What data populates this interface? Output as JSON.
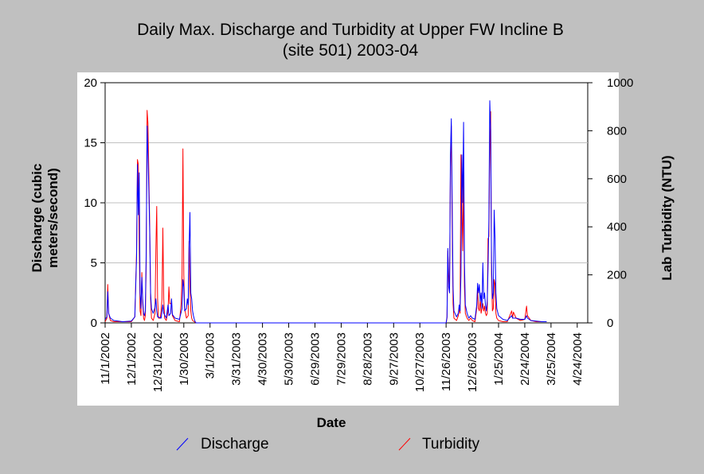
{
  "chart_data": {
    "type": "line",
    "title_line1": "Daily Max. Discharge and Turbidity at Upper FW Incline B",
    "title_line2": "(site 501) 2003-04",
    "xlabel": "Date",
    "ylabel_left_line1": "Discharge (cubic",
    "ylabel_left_line2": "meters/second)",
    "ylabel_right": "Lab Turbidity (NTU)",
    "x_tick_labels": [
      "11/1/2002",
      "12/1/2002",
      "12/31/2002",
      "1/30/2003",
      "3/1/2003",
      "3/31/2003",
      "4/30/2003",
      "5/30/2003",
      "6/29/2003",
      "7/29/2003",
      "8/28/2003",
      "9/27/2003",
      "10/27/2003",
      "11/26/2003",
      "12/26/2003",
      "1/25/2004",
      "2/24/2004",
      "3/25/2004",
      "4/24/2004"
    ],
    "x_range_days": [
      0,
      552
    ],
    "y_left": {
      "ticks": [
        "0",
        "5",
        "10",
        "15",
        "20"
      ],
      "range": [
        0,
        20
      ]
    },
    "y_right": {
      "ticks": [
        "0",
        "200",
        "400",
        "600",
        "800",
        "1000"
      ],
      "range": [
        0,
        1000
      ]
    },
    "grid": true,
    "legend_position": "bottom",
    "series": [
      {
        "name": "Discharge",
        "axis": "left",
        "color": "#0000ff",
        "points": [
          [
            0,
            0.3
          ],
          [
            2,
            0.5
          ],
          [
            3,
            2.6
          ],
          [
            4,
            0.8
          ],
          [
            6,
            0.4
          ],
          [
            10,
            0.2
          ],
          [
            20,
            0.1
          ],
          [
            30,
            0.15
          ],
          [
            34,
            0.5
          ],
          [
            36,
            5.5
          ],
          [
            37,
            13.2
          ],
          [
            38,
            9.0
          ],
          [
            39,
            12.5
          ],
          [
            40,
            2.5
          ],
          [
            41,
            1.2
          ],
          [
            42,
            3.8
          ],
          [
            43,
            2.0
          ],
          [
            44,
            0.8
          ],
          [
            45,
            0.6
          ],
          [
            46,
            1.0
          ],
          [
            47,
            6.0
          ],
          [
            48,
            16.4
          ],
          [
            49,
            14.0
          ],
          [
            50,
            11.0
          ],
          [
            51,
            7.5
          ],
          [
            52,
            2.5
          ],
          [
            53,
            1.2
          ],
          [
            55,
            0.8
          ],
          [
            57,
            1.3
          ],
          [
            58,
            2.0
          ],
          [
            59,
            1.0
          ],
          [
            60,
            0.5
          ],
          [
            64,
            0.4
          ],
          [
            66,
            1.5
          ],
          [
            67,
            0.8
          ],
          [
            70,
            0.4
          ],
          [
            72,
            1.5
          ],
          [
            73,
            0.6
          ],
          [
            75,
            0.8
          ],
          [
            76,
            2.0
          ],
          [
            77,
            0.7
          ],
          [
            80,
            0.4
          ],
          [
            85,
            0.3
          ],
          [
            88,
            1.2
          ],
          [
            89,
            3.6
          ],
          [
            90,
            3.0
          ],
          [
            91,
            1.0
          ],
          [
            93,
            1.2
          ],
          [
            94,
            2.0
          ],
          [
            95,
            1.5
          ],
          [
            96,
            6.2
          ],
          [
            97,
            9.2
          ],
          [
            98,
            2.5
          ],
          [
            99,
            2.0
          ],
          [
            100,
            1.0
          ],
          [
            101,
            0.6
          ],
          [
            102,
            0.3
          ],
          [
            103,
            0.1
          ],
          [
            104,
            0
          ],
          [
            390,
            0
          ],
          [
            391,
            0.5
          ],
          [
            392,
            6.2
          ],
          [
            393,
            3.0
          ],
          [
            394,
            2.5
          ],
          [
            395,
            14.0
          ],
          [
            396,
            17.0
          ],
          [
            397,
            10.0
          ],
          [
            398,
            3.0
          ],
          [
            399,
            1.0
          ],
          [
            402,
            0.5
          ],
          [
            404,
            0.8
          ],
          [
            405,
            1.5
          ],
          [
            406,
            1.0
          ],
          [
            407,
            4.0
          ],
          [
            408,
            14.0
          ],
          [
            409,
            10.0
          ],
          [
            410,
            16.7
          ],
          [
            411,
            5.0
          ],
          [
            412,
            1.5
          ],
          [
            414,
            0.8
          ],
          [
            416,
            0.4
          ],
          [
            418,
            0.6
          ],
          [
            420,
            0.4
          ],
          [
            423,
            0.3
          ],
          [
            425,
            1.5
          ],
          [
            426,
            3.3
          ],
          [
            427,
            2.5
          ],
          [
            428,
            3.2
          ],
          [
            429,
            1.8
          ],
          [
            430,
            2.5
          ],
          [
            431,
            1.2
          ],
          [
            432,
            5.0
          ],
          [
            433,
            2.0
          ],
          [
            434,
            2.5
          ],
          [
            435,
            1.5
          ],
          [
            436,
            1.0
          ],
          [
            437,
            1.8
          ],
          [
            438,
            4.5
          ],
          [
            439,
            8.5
          ],
          [
            440,
            18.5
          ],
          [
            441,
            16.0
          ],
          [
            442,
            5.0
          ],
          [
            443,
            2.0
          ],
          [
            444,
            2.5
          ],
          [
            445,
            9.4
          ],
          [
            446,
            7.0
          ],
          [
            447,
            2.5
          ],
          [
            448,
            1.2
          ],
          [
            450,
            0.6
          ],
          [
            455,
            0.3
          ],
          [
            460,
            0.2
          ],
          [
            465,
            0.6
          ],
          [
            466,
            0.4
          ],
          [
            470,
            0.4
          ],
          [
            475,
            0.3
          ],
          [
            480,
            0.3
          ],
          [
            482,
            0.6
          ],
          [
            483,
            0.4
          ],
          [
            487,
            0.2
          ],
          [
            493,
            0.15
          ],
          [
            500,
            0.1
          ],
          [
            505,
            0.1
          ]
        ]
      },
      {
        "name": "Turbidity",
        "axis": "right",
        "color": "#ff0000",
        "points": [
          [
            0,
            5
          ],
          [
            2,
            20
          ],
          [
            3,
            160
          ],
          [
            4,
            40
          ],
          [
            6,
            10
          ],
          [
            10,
            5
          ],
          [
            20,
            5
          ],
          [
            30,
            5
          ],
          [
            34,
            25
          ],
          [
            36,
            300
          ],
          [
            37,
            680
          ],
          [
            38,
            660
          ],
          [
            39,
            350
          ],
          [
            40,
            50
          ],
          [
            41,
            30
          ],
          [
            42,
            210
          ],
          [
            43,
            80
          ],
          [
            44,
            20
          ],
          [
            45,
            10
          ],
          [
            46,
            30
          ],
          [
            47,
            250
          ],
          [
            48,
            885
          ],
          [
            49,
            830
          ],
          [
            50,
            620
          ],
          [
            51,
            400
          ],
          [
            52,
            100
          ],
          [
            53,
            20
          ],
          [
            55,
            10
          ],
          [
            57,
            40
          ],
          [
            58,
            300
          ],
          [
            59,
            485
          ],
          [
            60,
            100
          ],
          [
            61,
            20
          ],
          [
            63,
            20
          ],
          [
            64,
            50
          ],
          [
            65,
            100
          ],
          [
            66,
            395
          ],
          [
            67,
            100
          ],
          [
            68,
            20
          ],
          [
            70,
            10
          ],
          [
            72,
            50
          ],
          [
            73,
            150
          ],
          [
            74,
            80
          ],
          [
            76,
            80
          ],
          [
            77,
            30
          ],
          [
            80,
            10
          ],
          [
            85,
            5
          ],
          [
            87,
            80
          ],
          [
            88,
            200
          ],
          [
            89,
            725
          ],
          [
            90,
            200
          ],
          [
            91,
            60
          ],
          [
            93,
            20
          ],
          [
            95,
            30
          ],
          [
            96,
            340
          ],
          [
            97,
            150
          ],
          [
            98,
            50
          ],
          [
            99,
            20
          ],
          [
            100,
            10
          ],
          [
            102,
            5
          ],
          [
            104,
            0
          ],
          [
            390,
            0
          ],
          [
            391,
            20
          ],
          [
            392,
            300
          ],
          [
            393,
            200
          ],
          [
            394,
            150
          ],
          [
            395,
            650
          ],
          [
            396,
            820
          ],
          [
            397,
            400
          ],
          [
            398,
            80
          ],
          [
            399,
            20
          ],
          [
            402,
            10
          ],
          [
            404,
            30
          ],
          [
            405,
            60
          ],
          [
            406,
            40
          ],
          [
            407,
            700
          ],
          [
            408,
            500
          ],
          [
            409,
            300
          ],
          [
            410,
            630
          ],
          [
            411,
            150
          ],
          [
            412,
            40
          ],
          [
            414,
            20
          ],
          [
            416,
            10
          ],
          [
            418,
            20
          ],
          [
            420,
            10
          ],
          [
            423,
            5
          ],
          [
            425,
            60
          ],
          [
            426,
            140
          ],
          [
            427,
            60
          ],
          [
            428,
            50
          ],
          [
            429,
            100
          ],
          [
            430,
            40
          ],
          [
            431,
            60
          ],
          [
            432,
            80
          ],
          [
            433,
            50
          ],
          [
            434,
            70
          ],
          [
            435,
            40
          ],
          [
            436,
            30
          ],
          [
            437,
            40
          ],
          [
            438,
            350
          ],
          [
            439,
            360
          ],
          [
            440,
            720
          ],
          [
            441,
            880
          ],
          [
            442,
            200
          ],
          [
            443,
            50
          ],
          [
            444,
            60
          ],
          [
            445,
            180
          ],
          [
            446,
            160
          ],
          [
            447,
            40
          ],
          [
            448,
            20
          ],
          [
            450,
            10
          ],
          [
            455,
            5
          ],
          [
            460,
            5
          ],
          [
            465,
            50
          ],
          [
            466,
            20
          ],
          [
            467,
            45
          ],
          [
            470,
            20
          ],
          [
            475,
            10
          ],
          [
            480,
            15
          ],
          [
            482,
            70
          ],
          [
            483,
            30
          ],
          [
            487,
            10
          ],
          [
            493,
            5
          ],
          [
            500,
            5
          ],
          [
            505,
            5
          ]
        ]
      }
    ]
  }
}
